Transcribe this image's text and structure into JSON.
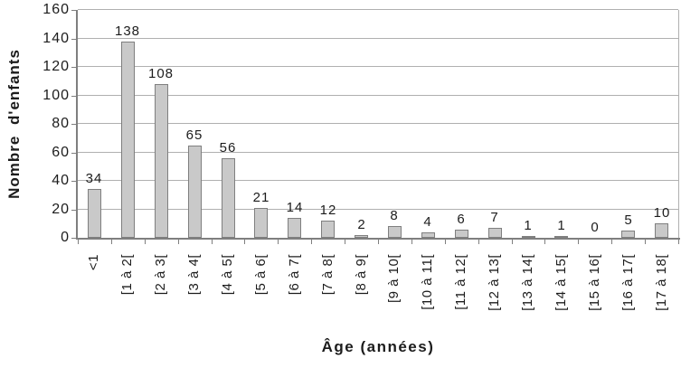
{
  "chart_data": {
    "type": "bar",
    "title": "",
    "xlabel": "Âge (années)",
    "ylabel": "Nombre d'enfants",
    "categories": [
      "<1",
      "[1 à 2[",
      "[2 à 3[",
      "[3 à 4[",
      "[4 à 5[",
      "[5 à 6[",
      "[6 à 7[",
      "[7 à 8[",
      "[8 à 9[",
      "[9 à 10[",
      "[10 à 11[",
      "[11 à 12[",
      "[12 à 13[",
      "[13 à 14[",
      "[14 à 15[",
      "[15 à 16[",
      "[16 à 17[",
      "[17 à 18["
    ],
    "values": [
      34,
      138,
      108,
      65,
      56,
      21,
      14,
      12,
      2,
      8,
      4,
      6,
      7,
      1,
      1,
      0,
      5,
      10
    ],
    "value_labels": [
      "34",
      "138",
      "108",
      "65",
      "56",
      "21",
      "14",
      "12",
      "2",
      "8",
      "4",
      "6",
      "7",
      "1",
      "1",
      "0",
      "5",
      "10"
    ],
    "yticks": [
      0,
      20,
      40,
      60,
      80,
      100,
      120,
      140,
      160
    ],
    "ylim": [
      0,
      160
    ],
    "grid": "horizontal",
    "legend": "none",
    "colors": {
      "bar_fill": "#c9c9c9",
      "bar_border": "#7f7f7f",
      "gridline": "#b0b0b0",
      "axis": "#7f7f7f",
      "text": "#1c1c1c"
    }
  }
}
